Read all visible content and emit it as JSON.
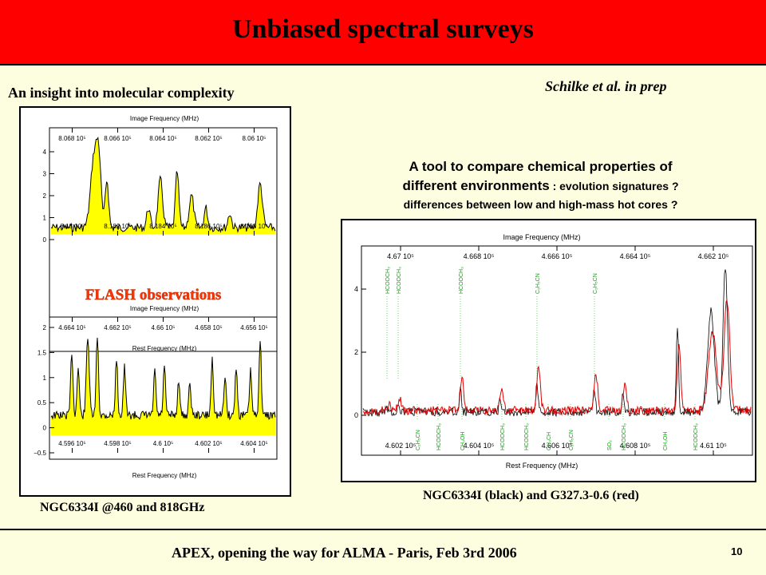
{
  "title": "Unbiased spectral surveys",
  "subheading": "An insight into molecular complexity",
  "reference": "Schilke et al. in prep",
  "tool_text": {
    "line1": "A tool to compare chemical properties of",
    "line2_main": "different environments",
    "line2_rest": " : evolution signatures ?",
    "line3": "differences between low and high-mass hot cores ?"
  },
  "left_panel": {
    "overlay": "FLASH observations",
    "caption": "NGC6334I @460 and 818GHz",
    "top_plot": {
      "top_axis_label": "Image Frequency (MHz)",
      "top_ticks": [
        "8.068 10⁵",
        "8.066 10⁵",
        "8.064 10⁵",
        "8.062 10⁵",
        "8.06 10⁵"
      ],
      "bottom_axis_label": "Rest Frequency (MHz)",
      "bottom_ticks": [
        "8.18 10⁵",
        "8.182 10⁵",
        "8.184 10⁵",
        "8.186 10⁵",
        "8.188 10⁵"
      ],
      "y_ticks": [
        "4",
        "3",
        "2",
        "1",
        "0"
      ]
    },
    "bottom_plot": {
      "top_axis_label": "Image Frequency (MHz)",
      "top_ticks": [
        "4.664 10⁵",
        "4.662 10⁵",
        "4.66 10⁵",
        "4.658 10⁵",
        "4.656 10⁵"
      ],
      "bottom_axis_label": "Rest Frequency (MHz)",
      "bottom_ticks": [
        "4.596 10⁵",
        "4.598 10⁵",
        "4.6 10⁵",
        "4.602 10⁵",
        "4.604 10⁵"
      ],
      "y_ticks": [
        "2",
        "1.5",
        "1",
        "0.5",
        "0",
        "−0.5"
      ]
    }
  },
  "right_panel": {
    "caption": "NGC6334I (black) and G327.3-0.6 (red)",
    "top_axis_label": "Image Frequency (MHz)",
    "top_ticks": [
      "4.67 10⁵",
      "4.668 10⁵",
      "4.666 10⁵",
      "4.664 10⁵",
      "4.662 10⁵"
    ],
    "bottom_axis_label": "Rest Frequency (MHz)",
    "bottom_ticks": [
      "4.602 10⁵",
      "4.604 10⁵",
      "4.606 10⁵",
      "4.608 10⁵",
      "4.61 10⁵"
    ],
    "y_ticks": [
      "4",
      "2",
      "0"
    ],
    "upper_line_labels": [
      "HCOOCH₃",
      "HCOOCH₃",
      "HCOOCH₃",
      "C₂H₅CN",
      "C₂H₅CN"
    ],
    "lower_line_labels": [
      "C₂H₅CN",
      "HCOOCH₃",
      "CH₃OH",
      "HCOOCH₃",
      "HCOOCH₃",
      "CH₃CH",
      "C₂H₅CN",
      "SO₂",
      "HCOOCH₃",
      "CH₃OH",
      "HCOOCH₃"
    ],
    "colors": {
      "source_1": "#000000",
      "source_2": "#e00000",
      "line_markers": "#00cc00"
    }
  },
  "footer": "APEX, opening the way for ALMA  -  Paris, Feb 3rd 2006",
  "page_number": "10"
}
